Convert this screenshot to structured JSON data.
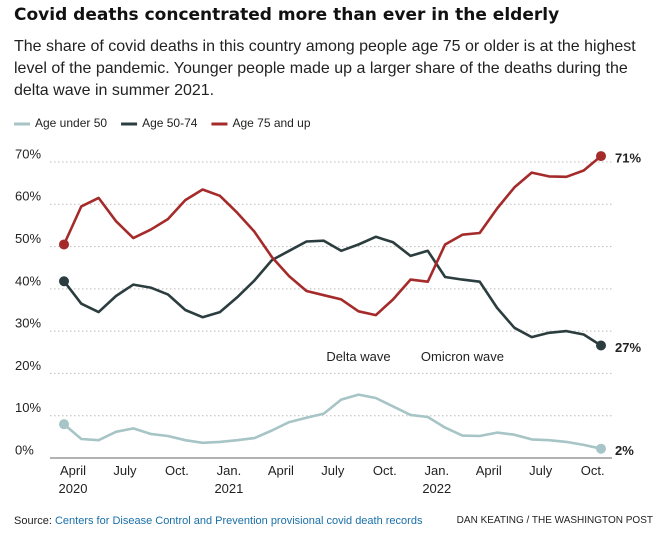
{
  "chart_data": {
    "type": "line",
    "title": "Covid deaths concentrated more than ever in the elderly",
    "subtitle": "The share of covid deaths in this country among people age 75 or older is at the highest level of the pandemic. Younger people made up a larger share of the deaths during the delta wave in summer 2021.",
    "categories": [
      "April 2020",
      null,
      null,
      "July",
      null,
      null,
      "Oct.",
      null,
      null,
      "Jan. 2021",
      null,
      null,
      "April",
      null,
      null,
      "July",
      null,
      null,
      "Oct.",
      null,
      null,
      "Jan. 2022",
      null,
      null,
      "April",
      null,
      null,
      "July",
      null,
      null,
      "Oct.",
      null
    ],
    "series": [
      {
        "name": "Age under 50",
        "color": "#a7c4c6",
        "end_label": "2%",
        "values": [
          8,
          4.5,
          4.2,
          6.2,
          7,
          5.7,
          5.2,
          4.2,
          3.6,
          3.8,
          4.2,
          4.7,
          6.5,
          8.5,
          9.5,
          10.5,
          13.8,
          15,
          14.2,
          12.2,
          10.2,
          9.7,
          7.2,
          5.3,
          5.2,
          6,
          5.5,
          4.4,
          4.2,
          3.8,
          3.1,
          2.2
        ]
      },
      {
        "name": "Age 50-74",
        "color": "#2b3d3f",
        "end_label": "27%",
        "values": [
          41.8,
          36.5,
          34.5,
          38.3,
          41,
          40.3,
          38.7,
          35,
          33.3,
          34.5,
          38,
          42,
          46.8,
          49,
          51.2,
          51.4,
          49,
          50.5,
          52.3,
          51,
          47.8,
          49,
          42.8,
          42.2,
          41.7,
          35.5,
          30.8,
          28.6,
          29.6,
          30,
          29.2,
          26.6
        ]
      },
      {
        "name": "Age 75 and up",
        "color": "#a52b2b",
        "end_label": "71%",
        "values": [
          50.5,
          59.5,
          61.5,
          56,
          52,
          54,
          56.5,
          61,
          63.5,
          62,
          58,
          53.5,
          47.5,
          43,
          39.5,
          38.5,
          37.5,
          34.7,
          33.8,
          37.5,
          42.2,
          41.7,
          50.5,
          52.8,
          53.2,
          59,
          64,
          67.5,
          66.6,
          66.5,
          68,
          71.4
        ]
      }
    ],
    "ylim": [
      0,
      70
    ],
    "yticks": [
      {
        "value": 0,
        "label": "0%"
      },
      {
        "value": 10,
        "label": "10%"
      },
      {
        "value": 20,
        "label": "20%"
      },
      {
        "value": 30,
        "label": "30%"
      },
      {
        "value": 40,
        "label": "40%"
      },
      {
        "value": 50,
        "label": "50%"
      },
      {
        "value": 60,
        "label": "60%"
      },
      {
        "value": 70,
        "label": "70%"
      }
    ],
    "grid": true,
    "annotations": [
      {
        "text": "Delta wave",
        "index": 17,
        "value": 24
      },
      {
        "text": "Omicron wave",
        "index": 23,
        "value": 24
      }
    ],
    "source_prefix": "Source:",
    "source": "Centers for Disease Control and Prevention provisional covid death records",
    "credit": "DAN KEATING / THE WASHINGTON POST"
  }
}
